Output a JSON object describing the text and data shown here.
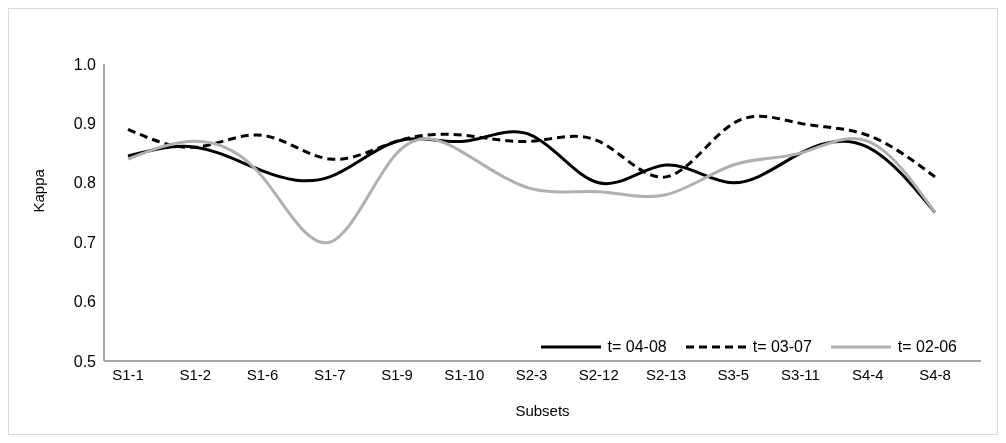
{
  "chart_data": {
    "type": "line",
    "xlabel": "Subsets",
    "ylabel": "Kappa",
    "categories": [
      "S1-1",
      "S1-2",
      "S1-6",
      "S1-7",
      "S1-9",
      "S1-10",
      "S2-3",
      "S2-12",
      "S2-13",
      "S3-5",
      "S3-11",
      "S4-4",
      "S4-8"
    ],
    "series": [
      {
        "name": "t= 04-08",
        "color": "#000000",
        "line_style": "solid",
        "values": [
          0.845,
          0.86,
          0.82,
          0.81,
          0.87,
          0.87,
          0.88,
          0.8,
          0.83,
          0.8,
          0.85,
          0.86,
          0.75
        ]
      },
      {
        "name": "t= 03-07",
        "color": "#000000",
        "line_style": "dashed",
        "values": [
          0.89,
          0.86,
          0.88,
          0.84,
          0.87,
          0.88,
          0.87,
          0.87,
          0.81,
          0.9,
          0.9,
          0.88,
          0.81
        ]
      },
      {
        "name": "t= 02-06",
        "color": "#b0b0b0",
        "line_style": "solid",
        "values": [
          0.84,
          0.87,
          0.81,
          0.7,
          0.85,
          0.85,
          0.79,
          0.785,
          0.78,
          0.83,
          0.85,
          0.87,
          0.75
        ]
      }
    ],
    "ylim": [
      0.5,
      1
    ],
    "yticks": [
      0.5,
      0.6,
      0.7,
      0.8,
      0.9,
      {
        "value": 1,
        "label": "1.0"
      }
    ],
    "grid": false,
    "legend": "bottom right",
    "marker": "none"
  }
}
